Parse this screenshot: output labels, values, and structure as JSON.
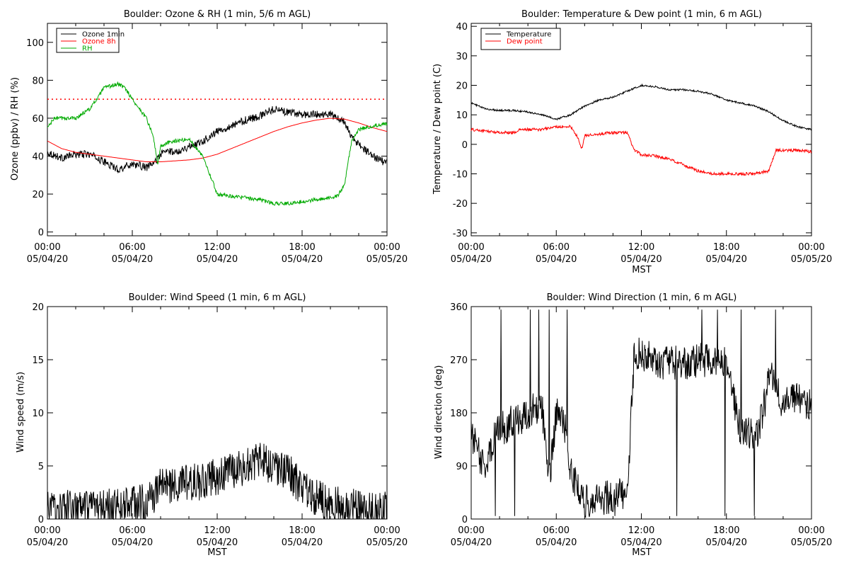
{
  "charts": [
    {
      "id": "ozone-rh",
      "title": "Boulder: Ozone & RH (1 min, 5/6 m AGL)",
      "ylabel": "Ozone (ppbv) / RH (%)",
      "xlabel": "",
      "ylim": [
        -2,
        110
      ],
      "yticks": [
        0,
        20,
        40,
        60,
        80,
        100
      ],
      "legend": [
        {
          "name": "Ozone 1min",
          "color": "#000000"
        },
        {
          "name": "Ozone 8h",
          "color": "#ff0000"
        },
        {
          "name": "RH",
          "color": "#00aa00"
        }
      ]
    },
    {
      "id": "temp-dew",
      "title": "Boulder: Temperature & Dew point (1 min, 6 m AGL)",
      "ylabel": "Temperature / Dew point (C)",
      "xlabel": "MST",
      "ylim": [
        -31,
        41
      ],
      "yticks": [
        -30,
        -20,
        -10,
        0,
        10,
        20,
        30,
        40
      ],
      "legend": [
        {
          "name": "Temperature",
          "color": "#000000"
        },
        {
          "name": "Dew point",
          "color": "#ff0000"
        }
      ]
    },
    {
      "id": "wind-speed",
      "title": "Boulder: Wind Speed (1 min, 6 m AGL)",
      "ylabel": "Wind speed (m/s)",
      "xlabel": "MST",
      "ylim": [
        0,
        20
      ],
      "yticks": [
        0,
        5,
        10,
        15,
        20
      ],
      "legend": []
    },
    {
      "id": "wind-dir",
      "title": "Boulder: Wind Direction (1 min, 6 m AGL)",
      "ylabel": "Wind direction (deg)",
      "xlabel": "MST",
      "ylim": [
        0,
        360
      ],
      "yticks": [
        0,
        90,
        180,
        270,
        360
      ],
      "legend": []
    }
  ],
  "xticks": [
    {
      "time": "00:00",
      "date": "05/04/20"
    },
    {
      "time": "06:00",
      "date": "05/04/20"
    },
    {
      "time": "12:00",
      "date": "05/04/20"
    },
    {
      "time": "18:00",
      "date": "05/04/20"
    },
    {
      "time": "00:00",
      "date": "05/05/20"
    }
  ],
  "chart_data": [
    {
      "type": "line",
      "title": "Boulder: Ozone & RH (1 min, 5/6 m AGL)",
      "ylabel": "Ozone (ppbv) / RH (%)",
      "xlabel": "",
      "x_unit": "hour MST (05/04/20 00:00 to 05/05/20 00:00)",
      "xlim": [
        0,
        24
      ],
      "ylim": [
        -2,
        110
      ],
      "reference_lines": [
        {
          "y": 70,
          "color": "#ff0000",
          "style": "dotted"
        }
      ],
      "series": [
        {
          "name": "Ozone 1min",
          "color": "#000000",
          "noise": 2,
          "x": [
            0,
            1,
            2,
            3,
            4,
            5,
            6,
            7,
            7.5,
            8,
            8.5,
            9,
            10,
            11,
            12,
            13,
            14,
            15,
            16,
            17,
            18,
            19,
            20,
            21,
            21.5,
            22,
            23,
            24
          ],
          "y": [
            42,
            39,
            41,
            41,
            37,
            33,
            36,
            34,
            36,
            41,
            43,
            42,
            45,
            48,
            53,
            56,
            59,
            61,
            65,
            63,
            62,
            62,
            62,
            58,
            50,
            46,
            40,
            36
          ]
        },
        {
          "name": "Ozone 8h",
          "color": "#ff0000",
          "noise": 0,
          "x": [
            0,
            1,
            2,
            3,
            4,
            5,
            6,
            7,
            8,
            9,
            10,
            11,
            12,
            13,
            14,
            15,
            16,
            17,
            18,
            19,
            20,
            21,
            22,
            23,
            24
          ],
          "y": [
            48,
            44,
            42,
            41,
            40,
            39,
            38,
            37,
            37,
            37.5,
            38,
            39,
            41,
            44,
            47,
            50,
            53,
            55.5,
            57.5,
            59,
            60,
            59.5,
            57.5,
            55,
            53
          ]
        },
        {
          "name": "RH",
          "color": "#00aa00",
          "noise": 1,
          "x": [
            0,
            0.5,
            1,
            2,
            3,
            3.5,
            4,
            5,
            5.5,
            6,
            7,
            7.5,
            7.8,
            8,
            8.5,
            9,
            10,
            11,
            11.5,
            12,
            13,
            14,
            15,
            16,
            17,
            18,
            19,
            20,
            20.5,
            21,
            21.5,
            22,
            23,
            24
          ],
          "y": [
            55,
            60,
            60,
            60,
            65,
            70,
            76,
            78,
            76,
            70,
            60,
            50,
            35,
            45,
            47,
            48,
            49,
            40,
            30,
            20,
            19,
            18,
            17,
            15,
            15,
            16,
            17,
            18,
            19,
            25,
            48,
            54,
            56,
            57
          ]
        }
      ]
    },
    {
      "type": "line",
      "title": "Boulder: Temperature & Dew point (1 min, 6 m AGL)",
      "ylabel": "Temperature / Dew point (C)",
      "xlabel": "MST",
      "x_unit": "hour MST (05/04/20 00:00 to 05/05/20 00:00)",
      "xlim": [
        0,
        24
      ],
      "ylim": [
        -31,
        41
      ],
      "series": [
        {
          "name": "Temperature",
          "color": "#000000",
          "noise": 0.3,
          "x": [
            0,
            1,
            2,
            3,
            4,
            5,
            6,
            7,
            8,
            9,
            10,
            11,
            12,
            13,
            14,
            15,
            16,
            17,
            18,
            19,
            20,
            21,
            22,
            23,
            24
          ],
          "y": [
            14,
            12,
            11.5,
            11.5,
            11,
            10,
            8.5,
            10,
            13,
            15,
            16,
            18,
            20,
            19.5,
            18.5,
            18.5,
            18,
            17,
            15,
            14,
            13,
            11,
            8,
            6,
            5
          ]
        },
        {
          "name": "Dew point",
          "color": "#ff0000",
          "noise": 0.5,
          "x": [
            0,
            1,
            2,
            3,
            3.5,
            4,
            5,
            6,
            7,
            7.5,
            7.8,
            8,
            9,
            10,
            11,
            11.5,
            12,
            13,
            14,
            15,
            16,
            17,
            18,
            19,
            20,
            21,
            21.5,
            22,
            23,
            24
          ],
          "y": [
            5,
            4.5,
            4,
            4,
            5,
            5,
            5,
            6,
            6,
            2.5,
            -1.5,
            3,
            3.5,
            4,
            4,
            -2,
            -3.5,
            -4,
            -5,
            -7,
            -9,
            -10,
            -10,
            -10,
            -10,
            -9,
            -2,
            -2,
            -2,
            -2.5
          ]
        }
      ]
    },
    {
      "type": "line",
      "title": "Boulder: Wind Speed (1 min, 6 m AGL)",
      "ylabel": "Wind speed (m/s)",
      "xlabel": "MST",
      "x_unit": "hour MST (05/04/20 00:00 to 05/05/20 00:00)",
      "xlim": [
        0,
        24
      ],
      "ylim": [
        0,
        20
      ],
      "series": [
        {
          "name": "",
          "color": "#000000",
          "noise": 1.8,
          "x": [
            0,
            1,
            2,
            3,
            4,
            5,
            6,
            7,
            7.5,
            8,
            9,
            10,
            11,
            12,
            13,
            14,
            15,
            16,
            17,
            18,
            19,
            20,
            21,
            22,
            23,
            24
          ],
          "y": [
            1,
            1,
            1,
            0.8,
            1,
            1.2,
            1.5,
            1.5,
            2,
            3.5,
            3,
            3.5,
            3.5,
            4,
            4.5,
            5,
            5.5,
            5,
            4.5,
            3,
            2,
            1.5,
            1.2,
            1,
            1,
            0.8
          ]
        }
      ]
    },
    {
      "type": "line",
      "title": "Boulder: Wind Direction (1 min, 6 m AGL)",
      "ylabel": "Wind direction (deg)",
      "xlabel": "MST",
      "x_unit": "hour MST (05/04/20 00:00 to 05/05/20 00:00)",
      "xlim": [
        0,
        24
      ],
      "ylim": [
        0,
        360
      ],
      "series": [
        {
          "name": "",
          "color": "#000000",
          "noise": 30,
          "x": [
            0,
            0.5,
            1,
            1.5,
            2,
            3,
            4,
            5,
            5.5,
            6,
            6.5,
            7,
            7.5,
            8,
            8.5,
            9,
            10,
            11,
            11.5,
            12,
            13,
            14,
            15,
            16,
            17,
            18,
            18.5,
            19,
            20,
            20.5,
            21,
            21.5,
            22,
            23,
            24
          ],
          "y": [
            150,
            110,
            90,
            130,
            150,
            165,
            180,
            190,
            60,
            180,
            175,
            80,
            60,
            30,
            30,
            30,
            40,
            40,
            280,
            280,
            265,
            265,
            265,
            270,
            265,
            265,
            200,
            150,
            140,
            170,
            240,
            240,
            190,
            210,
            190
          ]
        }
      ]
    }
  ]
}
